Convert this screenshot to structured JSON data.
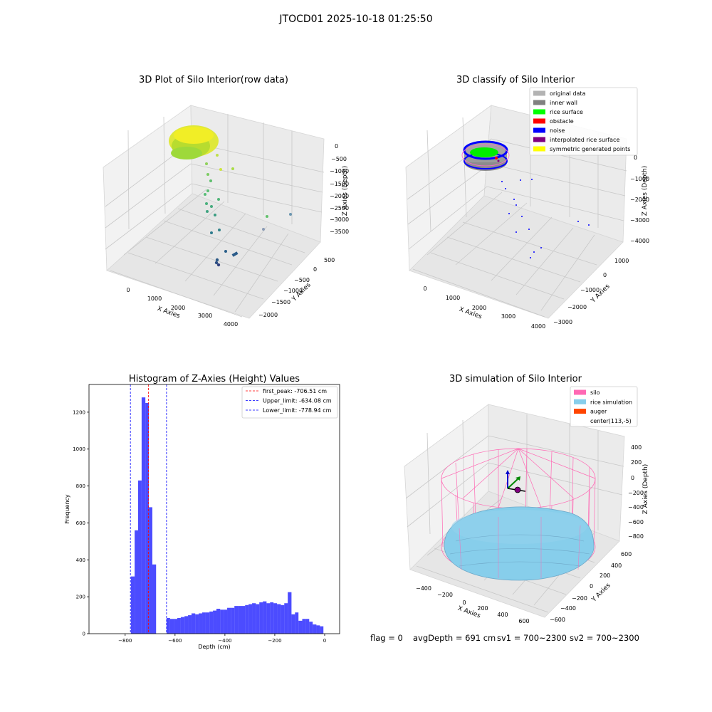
{
  "suptitle": "JTOCD01 2025-10-18 01:25:50",
  "chart_data": [
    {
      "type": "scatter",
      "panel": "top-left",
      "title": "3D Plot of Silo Interior(row data)",
      "xlabel": "X Axies",
      "ylabel": "Y Axies",
      "zlabel": "Z Axies (Depth)",
      "xticks": [
        "0",
        "1000",
        "2000",
        "3000",
        "4000"
      ],
      "yticks": [
        "500",
        "0",
        "−500",
        "−1000",
        "−1500",
        "−2000"
      ],
      "zticks": [
        "0",
        "−500",
        "−1000",
        "−1500",
        "−2000",
        "−2500",
        "−3000",
        "−3500"
      ],
      "grid": true
    },
    {
      "type": "scatter",
      "panel": "top-right",
      "title": "3D classify of Silo Interior",
      "xlabel": "X Axies",
      "ylabel": "Y Axies",
      "zlabel": "Z Axies (Depth)",
      "xticks": [
        "0",
        "1000",
        "2000",
        "3000",
        "4000"
      ],
      "yticks": [
        "1000",
        "0",
        "−1000",
        "−2000",
        "−3000"
      ],
      "zticks": [
        "0",
        "−1000",
        "−2000",
        "−3000",
        "−4000"
      ],
      "legend_position": "top-right",
      "legend": [
        {
          "label": "original data",
          "color": "#b3b3b3"
        },
        {
          "label": "inner wall",
          "color": "#808080"
        },
        {
          "label": "rice surface",
          "color": "#00ff00"
        },
        {
          "label": "obstacle",
          "color": "#ff0000"
        },
        {
          "label": "noise",
          "color": "#0000ff"
        },
        {
          "label": "interpolated rice surface",
          "color": "#800080"
        },
        {
          "label": "symmetric generated points",
          "color": "#ffff00"
        }
      ],
      "grid": true
    },
    {
      "type": "bar",
      "panel": "bottom-left",
      "title": "Histogram of Z-Axies (Height) Values",
      "xlabel": "Depth (cm)",
      "ylabel": "Frequency",
      "xlim": [
        -945,
        60
      ],
      "ylim": [
        0,
        1350
      ],
      "xticks": [
        -800,
        -600,
        -400,
        -200,
        0
      ],
      "xtick_labels": [
        "−800",
        "−600",
        "−400",
        "−200",
        "0"
      ],
      "yticks": [
        0,
        200,
        400,
        600,
        800,
        1000,
        1200
      ],
      "yticks_labels": [
        "0",
        "200",
        "400",
        "600",
        "800",
        "1000",
        "1200"
      ],
      "bar_color": "#0000ff",
      "bins": [
        [
          -777,
          -762,
          310
        ],
        [
          -762,
          -748,
          560
        ],
        [
          -748,
          -734,
          830
        ],
        [
          -734,
          -719,
          1280
        ],
        [
          -719,
          -705,
          1250
        ],
        [
          -705,
          -691,
          685
        ],
        [
          -691,
          -676,
          375
        ],
        [
          -676,
          -662,
          0
        ],
        [
          -662,
          -648,
          0
        ],
        [
          -648,
          -634,
          0
        ],
        [
          -634,
          -620,
          85
        ],
        [
          -620,
          -605,
          80
        ],
        [
          -605,
          -591,
          80
        ],
        [
          -591,
          -577,
          85
        ],
        [
          -577,
          -562,
          90
        ],
        [
          -562,
          -548,
          95
        ],
        [
          -548,
          -534,
          100
        ],
        [
          -534,
          -519,
          110
        ],
        [
          -519,
          -505,
          105
        ],
        [
          -505,
          -491,
          110
        ],
        [
          -491,
          -477,
          115
        ],
        [
          -477,
          -462,
          115
        ],
        [
          -462,
          -448,
          120
        ],
        [
          -448,
          -434,
          125
        ],
        [
          -434,
          -419,
          135
        ],
        [
          -419,
          -405,
          130
        ],
        [
          -405,
          -391,
          130
        ],
        [
          -391,
          -376,
          140
        ],
        [
          -376,
          -362,
          140
        ],
        [
          -362,
          -348,
          150
        ],
        [
          -348,
          -334,
          150
        ],
        [
          -334,
          -319,
          150
        ],
        [
          -319,
          -305,
          155
        ],
        [
          -305,
          -291,
          160
        ],
        [
          -291,
          -276,
          165
        ],
        [
          -276,
          -262,
          160
        ],
        [
          -262,
          -248,
          170
        ],
        [
          -248,
          -233,
          175
        ],
        [
          -233,
          -219,
          165
        ],
        [
          -219,
          -205,
          170
        ],
        [
          -205,
          -191,
          165
        ],
        [
          -191,
          -176,
          160
        ],
        [
          -176,
          -162,
          155
        ],
        [
          -162,
          -148,
          165
        ],
        [
          -148,
          -133,
          225
        ],
        [
          -133,
          -119,
          105
        ],
        [
          -119,
          -105,
          115
        ],
        [
          -105,
          -90,
          70
        ],
        [
          -90,
          -76,
          80
        ],
        [
          -76,
          -62,
          80
        ],
        [
          -62,
          -48,
          65
        ],
        [
          -48,
          -33,
          50
        ],
        [
          -33,
          -19,
          45
        ],
        [
          -19,
          -5,
          40
        ]
      ],
      "vlines": [
        {
          "label": "first_peak: -706.51 cm",
          "x": -706.51,
          "color": "#ff0000"
        },
        {
          "label": "Upper_limit: -634.08 cm",
          "x": -634.08,
          "color": "#0000ff"
        },
        {
          "label": "Lower_limit: -778.94 cm",
          "x": -778.94,
          "color": "#0000ff"
        }
      ],
      "legend_position": "top-right"
    },
    {
      "type": "scatter",
      "panel": "bottom-right",
      "title": "3D simulation of Silo Interior",
      "xlabel": "X Axies",
      "ylabel": "Y Axies",
      "zlabel": "Z Axies (Depth)",
      "xticks": [
        "−400",
        "−200",
        "0",
        "200",
        "400",
        "600"
      ],
      "yticks": [
        "600",
        "400",
        "200",
        "0",
        "−200",
        "−400",
        "−600"
      ],
      "zticks": [
        "400",
        "200",
        "0",
        "−200",
        "−400",
        "−600",
        "−800"
      ],
      "legend_position": "top-right",
      "legend": [
        {
          "label": "silo",
          "color": "#ff69b4"
        },
        {
          "label": "rice simulation",
          "color": "#87ceeb"
        },
        {
          "label": "auger",
          "color": "#ff4500"
        },
        {
          "label": "center(113,-5)",
          "color": "#ffffff"
        }
      ],
      "grid": true
    }
  ],
  "footer": {
    "flag": "flag = 0",
    "avg_depth": "avgDepth = 691 cm",
    "sv1": "sv1 = 700~2300",
    "sv2": "sv2 = 700~2300"
  }
}
